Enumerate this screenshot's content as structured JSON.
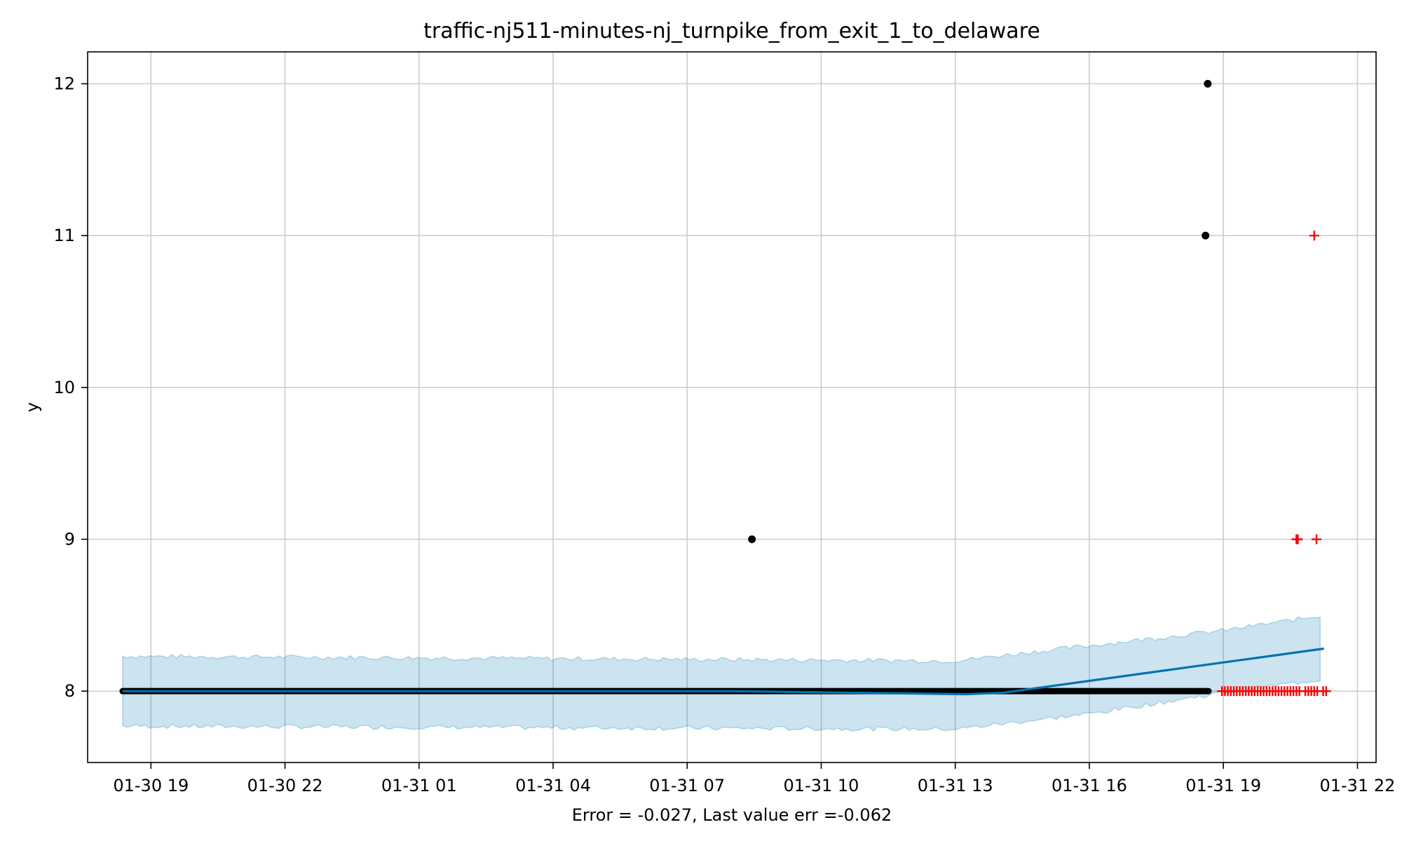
{
  "chart_data": {
    "type": "scatter",
    "title": "traffic-nj511-minutes-nj_turnpike_from_exit_1_to_delaware",
    "xlabel": "Error = -0.027, Last value err =-0.062",
    "ylabel": "y",
    "x_type": "datetime",
    "xlim": [
      "01-30 17:35",
      "01-31 22:25"
    ],
    "ylim": [
      7.53,
      12.21
    ],
    "x_ticks": [
      {
        "t": "01-30 19:00",
        "label": "01-30 19"
      },
      {
        "t": "01-30 22:00",
        "label": "01-30 22"
      },
      {
        "t": "01-31 01:00",
        "label": "01-31 01"
      },
      {
        "t": "01-31 04:00",
        "label": "01-31 04"
      },
      {
        "t": "01-31 07:00",
        "label": "01-31 07"
      },
      {
        "t": "01-31 10:00",
        "label": "01-31 10"
      },
      {
        "t": "01-31 13:00",
        "label": "01-31 13"
      },
      {
        "t": "01-31 16:00",
        "label": "01-31 16"
      },
      {
        "t": "01-31 19:00",
        "label": "01-31 19"
      },
      {
        "t": "01-31 22:00",
        "label": "01-31 22"
      }
    ],
    "y_ticks": [
      {
        "v": 8,
        "label": "8"
      },
      {
        "v": 9,
        "label": "9"
      },
      {
        "v": 10,
        "label": "10"
      },
      {
        "v": 11,
        "label": "11"
      },
      {
        "v": 12,
        "label": "12"
      }
    ],
    "grid": true,
    "series": [
      {
        "kind": "observed",
        "style": "black dots",
        "color": "#000000",
        "baseline": {
          "start": "01-30 18:22",
          "end": "01-31 18:40",
          "value": 8
        },
        "points": [
          {
            "x": "01-31 08:27",
            "y": 9
          },
          {
            "x": "01-31 18:36",
            "y": 11
          },
          {
            "x": "01-31 18:39",
            "y": 12
          }
        ]
      },
      {
        "kind": "forecast",
        "style": "line",
        "color": "#0072B2",
        "points": [
          {
            "x": "01-30 18:22",
            "y": 8.0
          },
          {
            "x": "01-31 08:00",
            "y": 8.0
          },
          {
            "x": "01-31 13:15",
            "y": 7.98
          },
          {
            "x": "01-31 14:05",
            "y": 7.99
          },
          {
            "x": "01-31 21:15",
            "y": 8.28
          }
        ]
      },
      {
        "kind": "uncertainty-interval",
        "style": "band",
        "color": "#0072B2",
        "upper": [
          {
            "x": "01-30 18:22",
            "y": 8.23
          },
          {
            "x": "01-31 13:00",
            "y": 8.2
          },
          {
            "x": "01-31 16:00",
            "y": 8.3
          },
          {
            "x": "01-31 19:00",
            "y": 8.4
          },
          {
            "x": "01-31 21:15",
            "y": 8.5
          }
        ],
        "lower": [
          {
            "x": "01-30 18:22",
            "y": 7.77
          },
          {
            "x": "01-31 13:00",
            "y": 7.75
          },
          {
            "x": "01-31 16:00",
            "y": 7.85
          },
          {
            "x": "01-31 19:00",
            "y": 7.99
          },
          {
            "x": "01-31 21:15",
            "y": 8.08
          }
        ]
      },
      {
        "kind": "test",
        "style": "red plus markers",
        "color": "#ff0000",
        "baseline": {
          "start": "01-31 18:58",
          "end": "01-31 21:20",
          "value": 8
        },
        "points": [
          {
            "x": "01-31 20:38",
            "y": 9
          },
          {
            "x": "01-31 20:40",
            "y": 9
          },
          {
            "x": "01-31 21:05",
            "y": 9
          },
          {
            "x": "01-31 21:02",
            "y": 11
          }
        ]
      }
    ]
  }
}
